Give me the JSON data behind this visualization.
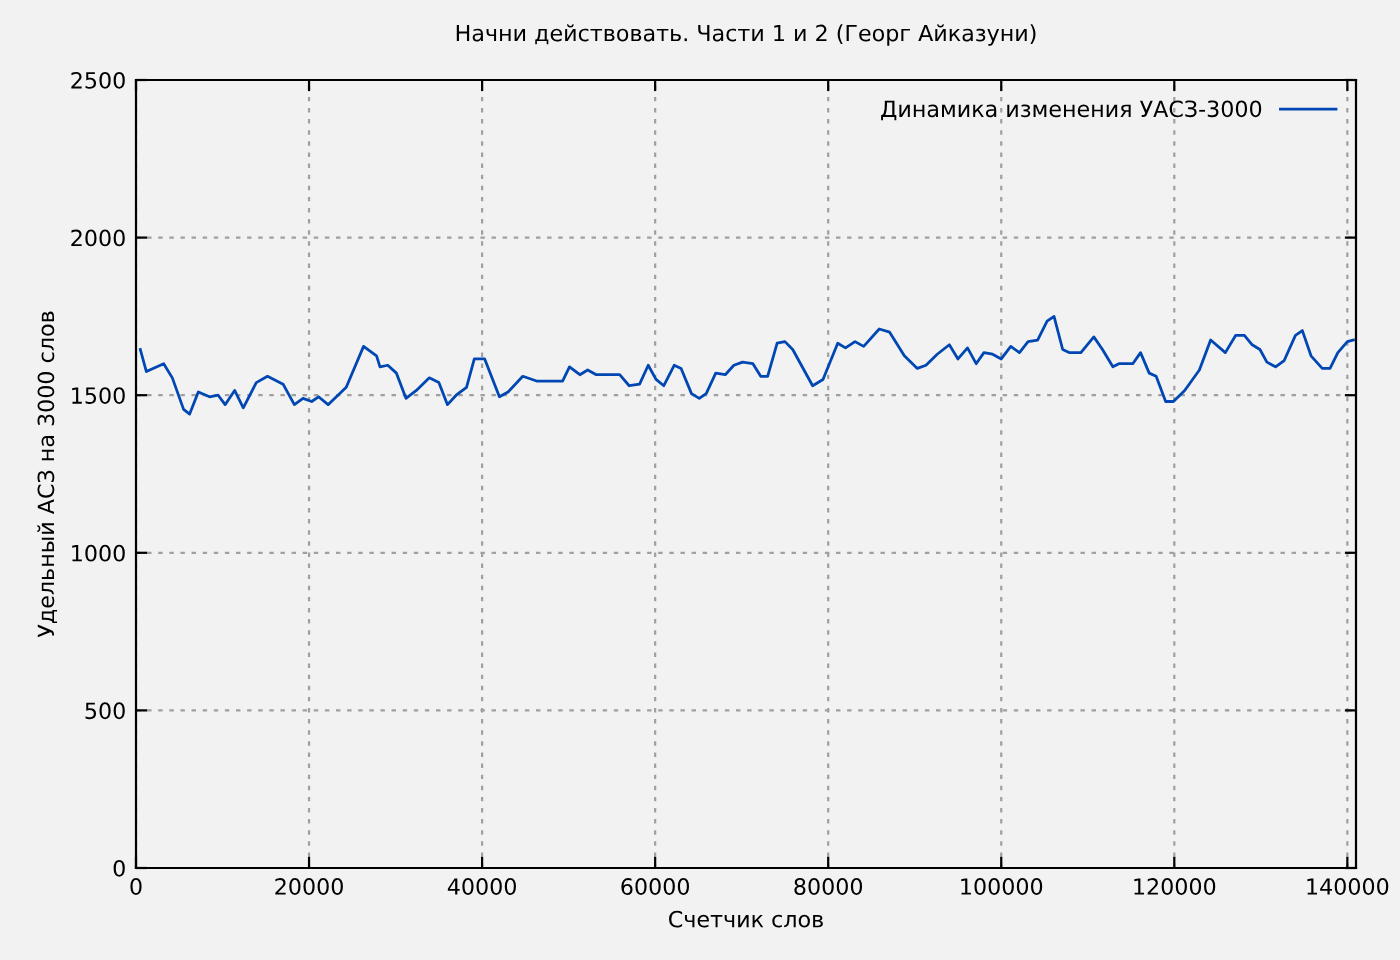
{
  "chart_data": {
    "type": "line",
    "title": "Начни действовать. Части 1 и 2 (Георг Айказуни)",
    "xlabel": "Счетчик слов",
    "ylabel": "Удельный АСЗ на 3000 слов",
    "xlim": [
      0,
      141000
    ],
    "ylim": [
      0,
      2500
    ],
    "xticks": [
      0,
      20000,
      40000,
      60000,
      80000,
      100000,
      120000,
      140000
    ],
    "yticks": [
      0,
      500,
      1000,
      1500,
      2000,
      2500
    ],
    "grid": true,
    "legend": "top right",
    "line_style": "solid",
    "series": [
      {
        "name": "Динамика изменения УАСЗ-3000",
        "color": "#0047b3",
        "x": [
          500,
          1200,
          3200,
          4200,
          5500,
          6200,
          7200,
          8500,
          9500,
          10300,
          11400,
          12400,
          13900,
          15200,
          17000,
          18300,
          19300,
          20300,
          21100,
          22200,
          24300,
          26300,
          27800,
          28200,
          29100,
          30100,
          31200,
          32400,
          33900,
          35000,
          36000,
          37000,
          38200,
          39100,
          40300,
          42000,
          43000,
          44700,
          46300,
          49300,
          50100,
          51300,
          52200,
          53200,
          54700,
          55900,
          57000,
          58200,
          59200,
          60100,
          61000,
          62200,
          63000,
          64200,
          65100,
          65900,
          67000,
          68100,
          69100,
          70100,
          71300,
          72200,
          73000,
          74100,
          75000,
          75900,
          78200,
          79400,
          81100,
          82000,
          83100,
          84100,
          85900,
          87100,
          88800,
          90300,
          91300,
          92600,
          94000,
          95000,
          96100,
          97100,
          98000,
          99000,
          100000,
          101100,
          102100,
          103100,
          104200,
          105300,
          106100,
          107100,
          107900,
          109200,
          110700,
          111700,
          112900,
          113600,
          115200,
          116100,
          117100,
          117900,
          119000,
          119900,
          121200,
          122900,
          124200,
          125900,
          127100,
          128100,
          129000,
          129900,
          130700,
          131700,
          132700,
          134000,
          134800,
          135800,
          137100,
          138000,
          138900,
          140000,
          140700
        ],
        "values": [
          1645,
          1575,
          1600,
          1555,
          1455,
          1440,
          1510,
          1495,
          1500,
          1470,
          1515,
          1460,
          1540,
          1560,
          1535,
          1470,
          1490,
          1480,
          1495,
          1470,
          1525,
          1655,
          1625,
          1590,
          1595,
          1570,
          1490,
          1515,
          1555,
          1540,
          1470,
          1500,
          1525,
          1615,
          1615,
          1495,
          1510,
          1560,
          1545,
          1545,
          1590,
          1565,
          1580,
          1565,
          1565,
          1565,
          1530,
          1535,
          1595,
          1550,
          1530,
          1595,
          1585,
          1505,
          1490,
          1505,
          1570,
          1565,
          1595,
          1605,
          1600,
          1560,
          1560,
          1665,
          1670,
          1645,
          1530,
          1550,
          1665,
          1650,
          1670,
          1655,
          1710,
          1700,
          1625,
          1585,
          1595,
          1630,
          1660,
          1615,
          1650,
          1600,
          1635,
          1630,
          1615,
          1655,
          1635,
          1670,
          1675,
          1735,
          1750,
          1645,
          1635,
          1635,
          1685,
          1645,
          1590,
          1600,
          1600,
          1635,
          1570,
          1560,
          1480,
          1480,
          1515,
          1580,
          1675,
          1635,
          1690,
          1690,
          1660,
          1645,
          1605,
          1590,
          1610,
          1690,
          1705,
          1625,
          1585,
          1585,
          1635,
          1670,
          1675
        ]
      }
    ]
  }
}
